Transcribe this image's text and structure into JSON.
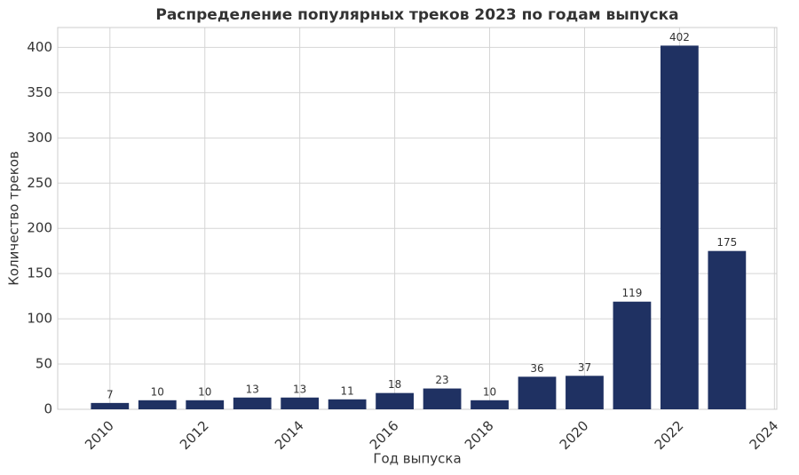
{
  "chart_data": {
    "type": "bar",
    "title": "Распределение популярных треков 2023 по годам выпуска",
    "x_label": "Год выпуска",
    "y_label": "Количество треков",
    "x": [
      2010,
      2011,
      2012,
      2013,
      2014,
      2015,
      2016,
      2017,
      2018,
      2019,
      2020,
      2021,
      2022,
      2023
    ],
    "values": [
      7,
      10,
      10,
      13,
      13,
      11,
      18,
      23,
      10,
      36,
      37,
      119,
      402,
      175
    ],
    "color": "#1f3162",
    "xlim": [
      2008.9,
      2024.05
    ],
    "xticks": [
      2010,
      2012,
      2014,
      2016,
      2018,
      2020,
      2022,
      2024
    ],
    "ylim": [
      0,
      422
    ],
    "yticks": [
      0,
      50,
      100,
      150,
      200,
      250,
      300,
      350,
      400
    ],
    "grid": true
  }
}
